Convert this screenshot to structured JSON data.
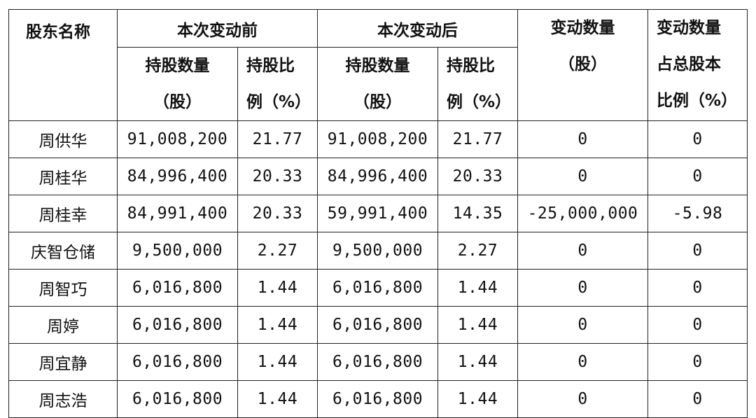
{
  "headers": {
    "shareholder": "股东名称",
    "before": "本次变动前",
    "after": "本次变动后",
    "change_qty": [
      "变动数量",
      "（股）"
    ],
    "change_ratio": [
      "变动数量",
      "占总股本",
      "比例（%）"
    ],
    "shares": [
      "持股数量",
      "（股）"
    ],
    "ratio": [
      "持股比",
      "例（%）"
    ]
  },
  "rows": [
    {
      "name": "周供华",
      "before_shares": "91,008,200",
      "before_ratio": "21.77",
      "after_shares": "91,008,200",
      "after_ratio": "21.77",
      "change_qty": "0",
      "change_ratio": "0"
    },
    {
      "name": "周桂华",
      "before_shares": "84,996,400",
      "before_ratio": "20.33",
      "after_shares": "84,996,400",
      "after_ratio": "20.33",
      "change_qty": "0",
      "change_ratio": "0"
    },
    {
      "name": "周桂幸",
      "before_shares": "84,991,400",
      "before_ratio": "20.33",
      "after_shares": "59,991,400",
      "after_ratio": "14.35",
      "change_qty": "-25,000,000",
      "change_ratio": "-5.98"
    },
    {
      "name": "庆智仓储",
      "before_shares": "9,500,000",
      "before_ratio": "2.27",
      "after_shares": "9,500,000",
      "after_ratio": "2.27",
      "change_qty": "0",
      "change_ratio": "0"
    },
    {
      "name": "周智巧",
      "before_shares": "6,016,800",
      "before_ratio": "1.44",
      "after_shares": "6,016,800",
      "after_ratio": "1.44",
      "change_qty": "0",
      "change_ratio": "0"
    },
    {
      "name": "周婷",
      "before_shares": "6,016,800",
      "before_ratio": "1.44",
      "after_shares": "6,016,800",
      "after_ratio": "1.44",
      "change_qty": "0",
      "change_ratio": "0"
    },
    {
      "name": "周宜静",
      "before_shares": "6,016,800",
      "before_ratio": "1.44",
      "after_shares": "6,016,800",
      "after_ratio": "1.44",
      "change_qty": "0",
      "change_ratio": "0"
    },
    {
      "name": "周志浩",
      "before_shares": "6,016,800",
      "before_ratio": "1.44",
      "after_shares": "6,016,800",
      "after_ratio": "1.44",
      "change_qty": "0",
      "change_ratio": "0"
    }
  ]
}
